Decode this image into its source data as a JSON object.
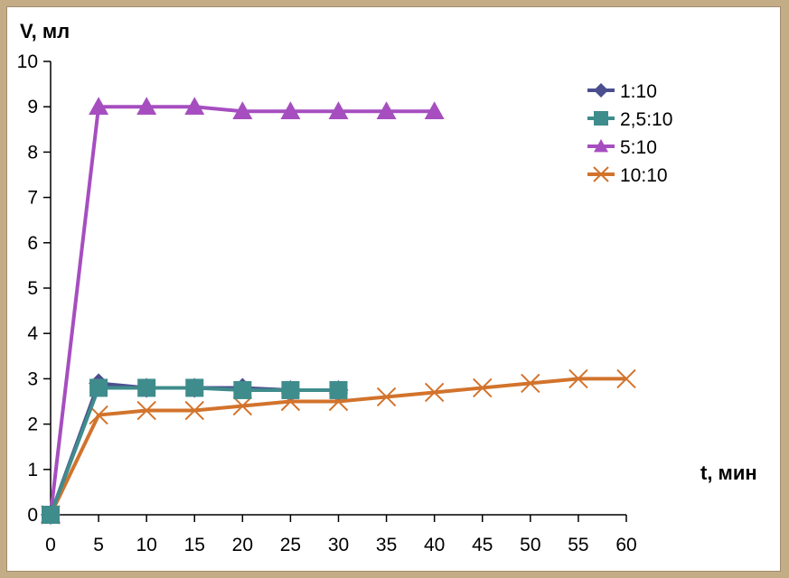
{
  "chart_data": {
    "type": "line",
    "title": "",
    "ylabel": "V, мл",
    "xlabel": "t, мин",
    "xlim": [
      0,
      60
    ],
    "ylim": [
      0,
      10
    ],
    "x_ticks": [
      "0",
      "5",
      "10",
      "15",
      "20",
      "25",
      "30",
      "35",
      "40",
      "45",
      "50",
      "55",
      "60"
    ],
    "y_ticks": [
      "0",
      "1",
      "2",
      "3",
      "4",
      "5",
      "6",
      "7",
      "8",
      "9",
      "10"
    ],
    "grid": false,
    "legend_position": "top-right",
    "series": [
      {
        "name": "1:10",
        "color": "#4b4f8f",
        "marker": "diamond",
        "x": [
          0,
          5,
          10,
          15,
          20,
          25,
          30
        ],
        "y": [
          0,
          2.9,
          2.8,
          2.8,
          2.8,
          2.75,
          2.75
        ]
      },
      {
        "name": "2,5:10",
        "color": "#3f8c8c",
        "marker": "square",
        "x": [
          0,
          5,
          10,
          15,
          20,
          25,
          30
        ],
        "y": [
          0,
          2.8,
          2.8,
          2.8,
          2.75,
          2.75,
          2.75
        ]
      },
      {
        "name": "5:10",
        "color": "#a64ec0",
        "marker": "triangle",
        "x": [
          0,
          5,
          10,
          15,
          20,
          25,
          30,
          35,
          40
        ],
        "y": [
          0,
          9.0,
          9.0,
          9.0,
          8.9,
          8.9,
          8.9,
          8.9,
          8.9
        ]
      },
      {
        "name": "10:10",
        "color": "#d2732c",
        "marker": "x",
        "x": [
          0,
          5,
          10,
          15,
          20,
          25,
          30,
          35,
          40,
          45,
          50,
          55,
          60
        ],
        "y": [
          0,
          2.2,
          2.3,
          2.3,
          2.4,
          2.5,
          2.5,
          2.6,
          2.7,
          2.8,
          2.9,
          3.0,
          3.0
        ]
      }
    ]
  }
}
